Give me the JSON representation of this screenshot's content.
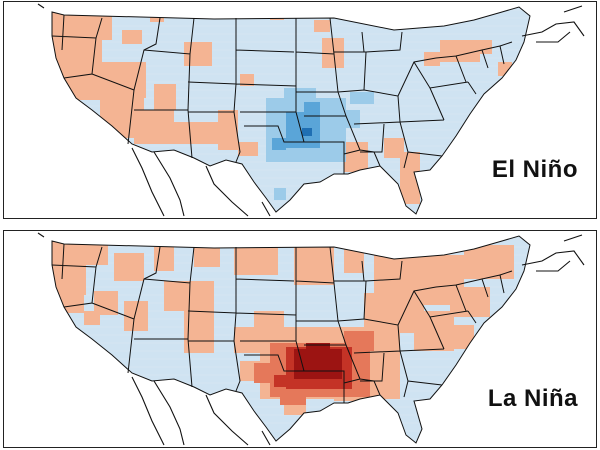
{
  "panels": [
    {
      "label": "El Niño",
      "colors": {
        "base": "#cfe3f2",
        "warm": "#f4b493",
        "cool_light": "#9ccbe9",
        "cool_mid": "#5aa5d8",
        "cool_dark": "#1f6fb3"
      }
    },
    {
      "label": "La Niña",
      "colors": {
        "base": "#cfe3f2",
        "warm": "#f4b493",
        "warm_mid": "#e5785a",
        "warm_dark": "#c43326",
        "warm_deep": "#9c1412"
      }
    }
  ],
  "colors": {
    "border": "#111111",
    "background": "#ffffff"
  }
}
